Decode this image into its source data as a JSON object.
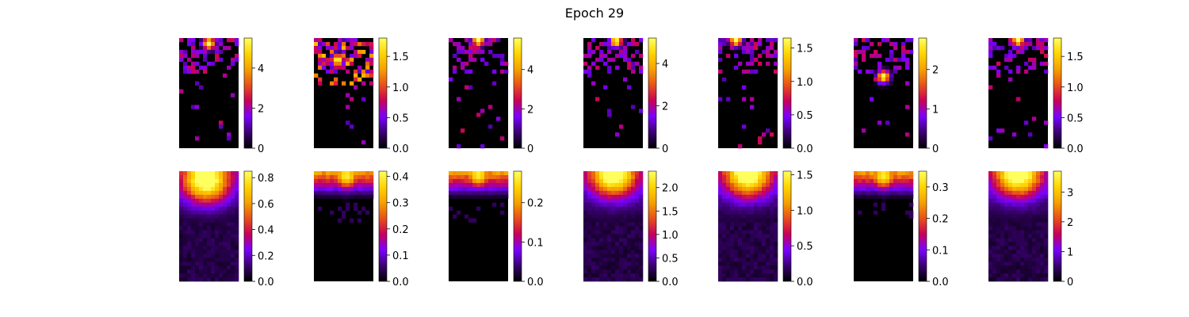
{
  "title": "Epoch 29",
  "colormap": "gnuplot",
  "colormap_stops": [
    "#000000",
    "#3a0070",
    "#7a00ff",
    "#c8005a",
    "#e8501a",
    "#f5a000",
    "#ffd400",
    "#ffff60"
  ],
  "chart_data": [
    {
      "type": "heatmap",
      "row": 1,
      "col": 1,
      "grid": [
        15,
        28
      ],
      "pattern": "sparse",
      "hotspot": [
        0.5,
        0.05
      ],
      "colorbar_ticks": [
        "0",
        "2",
        "4"
      ],
      "colorbar_range": [
        0,
        5.5
      ]
    },
    {
      "type": "heatmap",
      "row": 1,
      "col": 2,
      "grid": [
        15,
        28
      ],
      "pattern": "sparse",
      "hotspot": [
        0.4,
        0.2
      ],
      "colorbar_ticks": [
        "0.0",
        "0.5",
        "1.0",
        "1.5"
      ],
      "colorbar_range": [
        0,
        1.8
      ]
    },
    {
      "type": "heatmap",
      "row": 1,
      "col": 3,
      "grid": [
        15,
        28
      ],
      "pattern": "sparse",
      "hotspot": [
        0.5,
        0.02
      ],
      "colorbar_ticks": [
        "0",
        "2",
        "4"
      ],
      "colorbar_range": [
        0,
        5.6
      ]
    },
    {
      "type": "heatmap",
      "row": 1,
      "col": 4,
      "grid": [
        15,
        28
      ],
      "pattern": "sparse",
      "hotspot": [
        0.55,
        0.03
      ],
      "colorbar_ticks": [
        "0",
        "2",
        "4"
      ],
      "colorbar_range": [
        0,
        5.2
      ]
    },
    {
      "type": "heatmap",
      "row": 1,
      "col": 5,
      "grid": [
        15,
        28
      ],
      "pattern": "sparse",
      "hotspot": [
        0.3,
        0.02
      ],
      "colorbar_ticks": [
        "0.0",
        "0.5",
        "1.0",
        "1.5"
      ],
      "colorbar_range": [
        0,
        1.65
      ]
    },
    {
      "type": "heatmap",
      "row": 1,
      "col": 6,
      "grid": [
        15,
        28
      ],
      "pattern": "sparse",
      "hotspot": [
        0.5,
        0.35
      ],
      "colorbar_ticks": [
        "0",
        "1",
        "2"
      ],
      "colorbar_range": [
        0,
        2.8
      ]
    },
    {
      "type": "heatmap",
      "row": 1,
      "col": 7,
      "grid": [
        15,
        28
      ],
      "pattern": "sparse",
      "hotspot": [
        0.5,
        0.02
      ],
      "colorbar_ticks": [
        "0.0",
        "0.5",
        "1.0",
        "1.5"
      ],
      "colorbar_range": [
        0,
        1.8
      ]
    },
    {
      "type": "heatmap",
      "row": 2,
      "col": 1,
      "grid": [
        15,
        28
      ],
      "pattern": "smooth",
      "hotspot": [
        0.45,
        0.08
      ],
      "colorbar_ticks": [
        "0.0",
        "0.2",
        "0.4",
        "0.6",
        "0.8"
      ],
      "colorbar_range": [
        0,
        0.85
      ]
    },
    {
      "type": "heatmap",
      "row": 2,
      "col": 2,
      "grid": [
        15,
        28
      ],
      "pattern": "band",
      "hotspot": [
        0.55,
        0.04
      ],
      "colorbar_ticks": [
        "0.0",
        "0.1",
        "0.2",
        "0.3",
        "0.4"
      ],
      "colorbar_range": [
        0,
        0.42
      ]
    },
    {
      "type": "heatmap",
      "row": 2,
      "col": 3,
      "grid": [
        15,
        28
      ],
      "pattern": "band",
      "hotspot": [
        0.5,
        0.03
      ],
      "colorbar_ticks": [
        "0.0",
        "0.1",
        "0.2"
      ],
      "colorbar_range": [
        0,
        0.28
      ]
    },
    {
      "type": "heatmap",
      "row": 2,
      "col": 4,
      "grid": [
        15,
        28
      ],
      "pattern": "smooth",
      "hotspot": [
        0.5,
        0.02
      ],
      "colorbar_ticks": [
        "0.0",
        "0.5",
        "1.0",
        "1.5",
        "2.0"
      ],
      "colorbar_range": [
        0,
        2.35
      ]
    },
    {
      "type": "heatmap",
      "row": 2,
      "col": 5,
      "grid": [
        15,
        28
      ],
      "pattern": "smooth",
      "hotspot": [
        0.5,
        0.02
      ],
      "colorbar_ticks": [
        "0.0",
        "0.5",
        "1.0",
        "1.5"
      ],
      "colorbar_range": [
        0,
        1.55
      ]
    },
    {
      "type": "heatmap",
      "row": 2,
      "col": 6,
      "grid": [
        15,
        28
      ],
      "pattern": "band",
      "hotspot": [
        0.5,
        0.04
      ],
      "colorbar_ticks": [
        "0.0",
        "0.1",
        "0.2",
        "0.3"
      ],
      "colorbar_range": [
        0,
        0.35
      ]
    },
    {
      "type": "heatmap",
      "row": 2,
      "col": 7,
      "grid": [
        15,
        28
      ],
      "pattern": "smooth",
      "hotspot": [
        0.5,
        0.02
      ],
      "colorbar_ticks": [
        "0",
        "1",
        "2",
        "3"
      ],
      "colorbar_range": [
        0,
        3.7
      ]
    }
  ]
}
